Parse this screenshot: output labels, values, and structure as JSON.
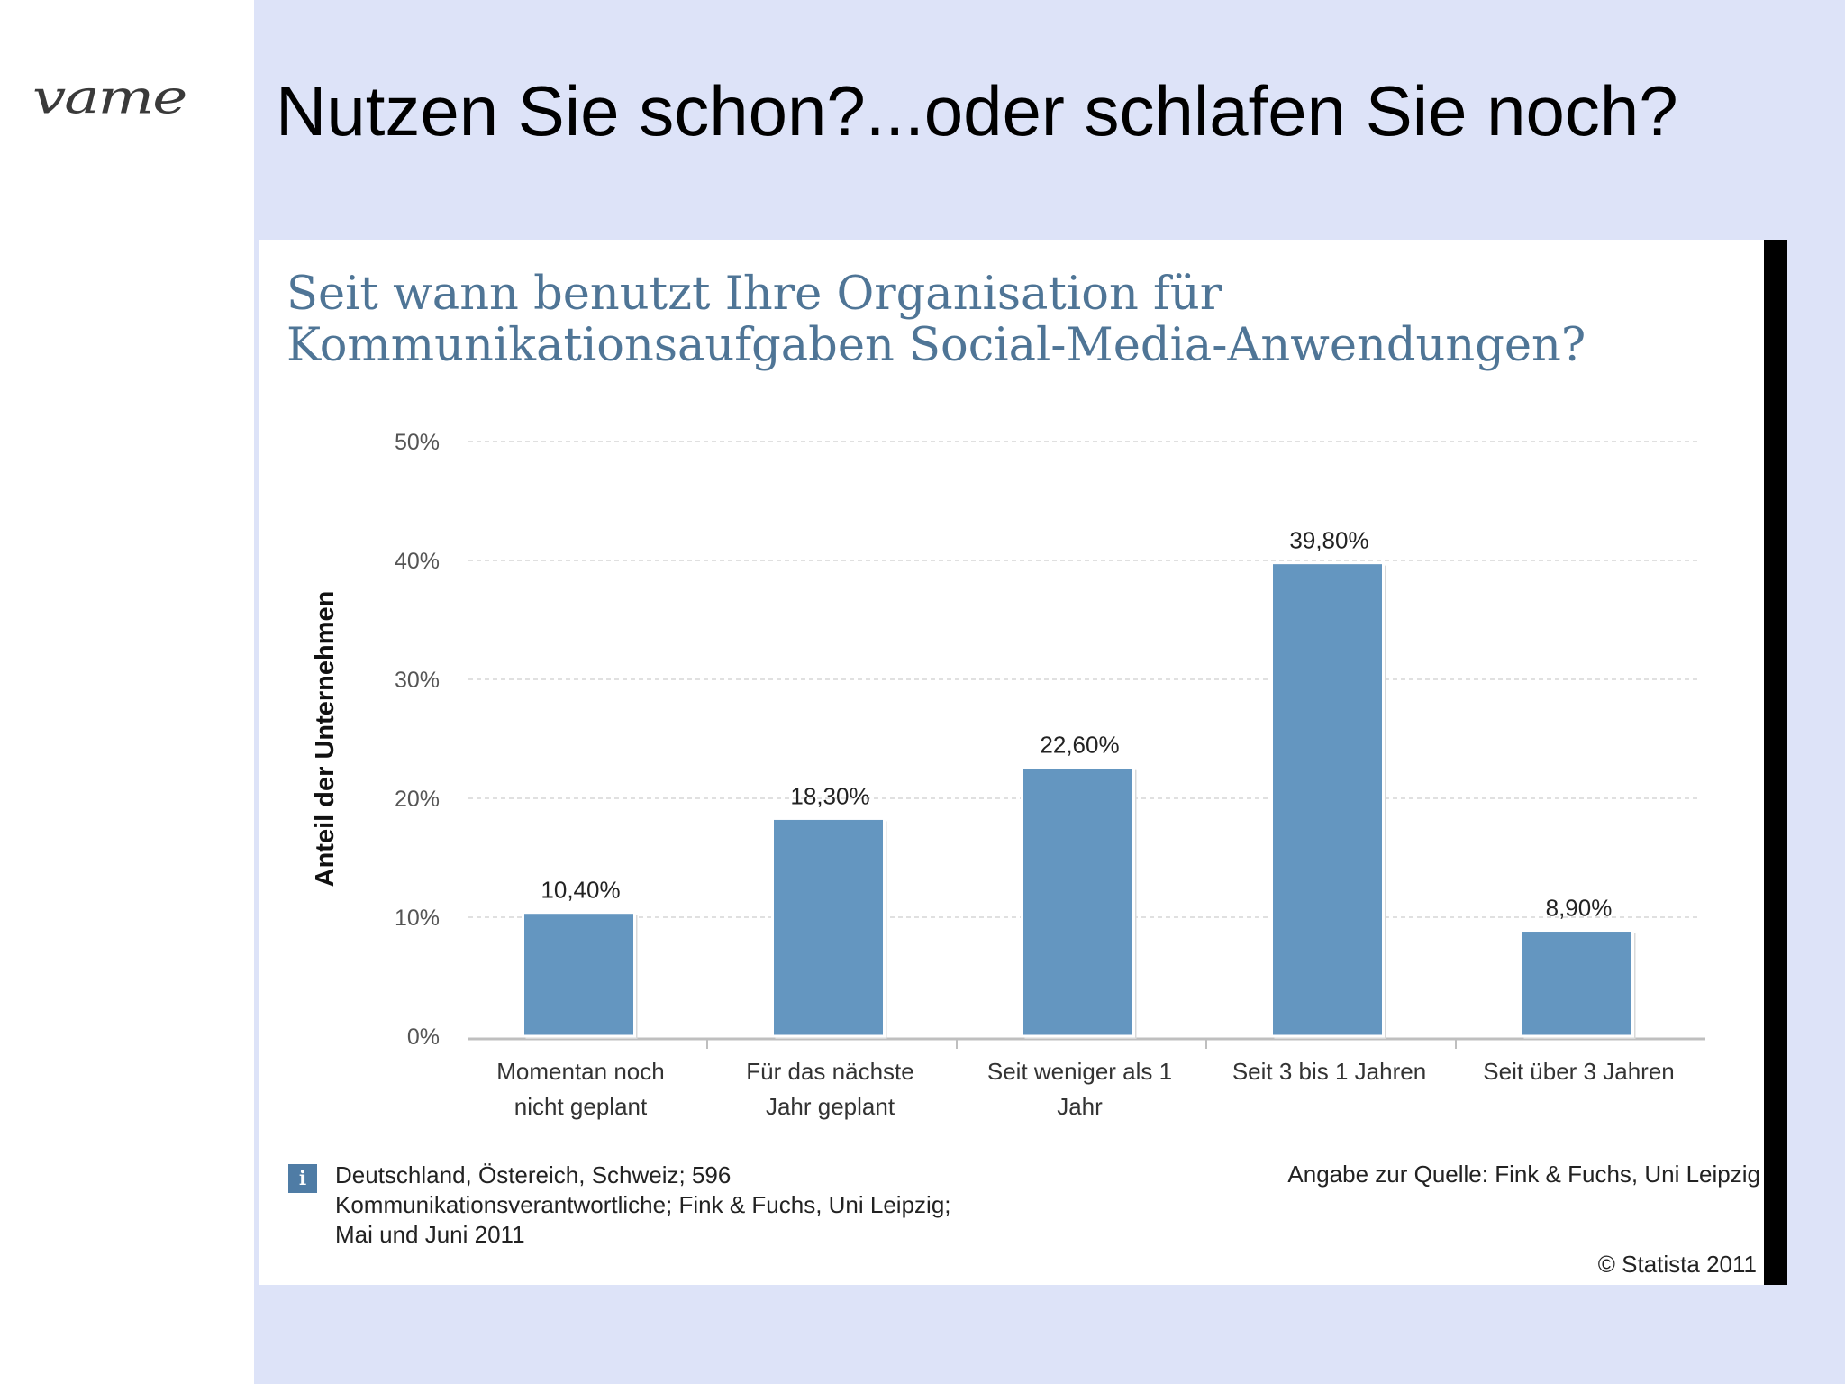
{
  "slide": {
    "logo_text": "vame",
    "title": "Nutzen Sie schon?...oder schlafen Sie noch?"
  },
  "chart_data": {
    "type": "bar",
    "title_lines": [
      "Seit wann benutzt Ihre Organisation für",
      "Kommunikationsaufgaben Social-Media-Anwendungen?"
    ],
    "ylabel": "Anteil der Unternehmen",
    "ylim": [
      0,
      50
    ],
    "yticks": [
      0,
      10,
      20,
      30,
      40,
      50
    ],
    "ytick_labels": [
      "0%",
      "10%",
      "20%",
      "30%",
      "40%",
      "50%"
    ],
    "grid": true,
    "categories": [
      [
        "Momentan noch",
        "nicht geplant"
      ],
      [
        "Für das nächste",
        "Jahr geplant"
      ],
      [
        "Seit weniger als 1",
        "Jahr"
      ],
      [
        "Seit 3 bis 1 Jahren"
      ],
      [
        "Seit über 3 Jahren"
      ]
    ],
    "values": [
      10.4,
      18.3,
      22.6,
      39.8,
      8.9
    ],
    "value_labels": [
      "10,40%",
      "18,30%",
      "22,60%",
      "39,80%",
      "8,90%"
    ],
    "bar_color": "#6496c0"
  },
  "footer": {
    "info_icon": "i",
    "note": "Deutschland, Östereich, Schweiz; 596 Kommunikationsverantwortliche; Fink & Fuchs, Uni Leipzig; Mai und Juni 2011",
    "source": "Angabe zur Quelle: Fink & Fuchs, Uni Leipzig",
    "copyright": "© Statista 2011"
  }
}
